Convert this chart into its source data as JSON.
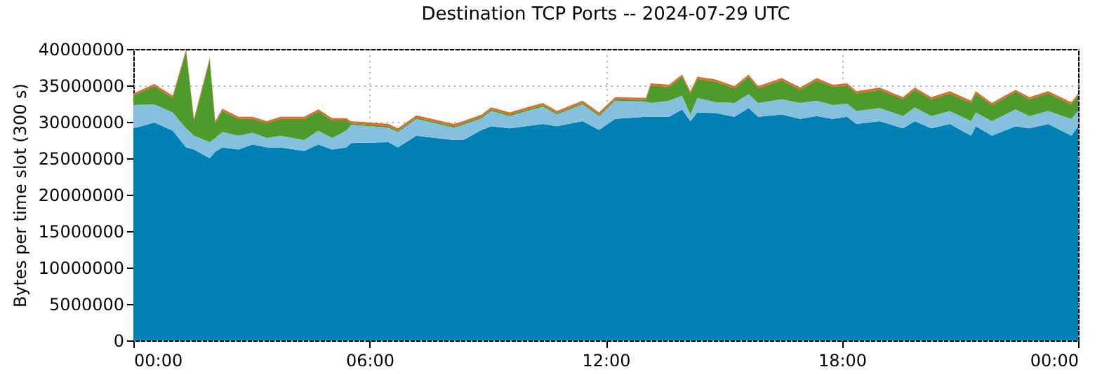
{
  "chart_data": {
    "type": "area",
    "stacked": true,
    "title": "Destination TCP Ports -- 2024-07-29 UTC",
    "ylabel": "Bytes per time slot (300 s)",
    "x": [
      0,
      0.53,
      1,
      1.34,
      1.54,
      1.94,
      2.08,
      2.26,
      2.67,
      3.03,
      3.39,
      3.74,
      4.34,
      4.7,
      5.05,
      5.41,
      5.53,
      6.48,
      6.72,
      7.19,
      8.14,
      8.38,
      8.85,
      9.09,
      9.56,
      10.4,
      10.76,
      11.41,
      11.83,
      12.24,
      13.02,
      13.14,
      13.61,
      13.94,
      14.15,
      14.33,
      14.8,
      15.27,
      15.63,
      15.87,
      16.47,
      16.94,
      17.36,
      17.77,
      18.13,
      18.37,
      18.96,
      19.55,
      19.85,
      20.27,
      20.74,
      21.28,
      21.4,
      21.81,
      22.41,
      22.76,
      23.24,
      23.83,
      24
    ],
    "series": [
      {
        "color": "#0081b5",
        "values": [
          29100000,
          29900000,
          28800000,
          26500000,
          26200000,
          25000000,
          25900000,
          26500000,
          26200000,
          26900000,
          26500000,
          26500000,
          26000000,
          26900000,
          26200000,
          26500000,
          27100000,
          27200000,
          26500000,
          28100000,
          27500000,
          27500000,
          28900000,
          29400000,
          29100000,
          29700000,
          29400000,
          30100000,
          28900000,
          30400000,
          30700000,
          30700000,
          30700000,
          31700000,
          30100000,
          31300000,
          31200000,
          30700000,
          31900000,
          30700000,
          31000000,
          30400000,
          30800000,
          30400000,
          30700000,
          29700000,
          30100000,
          29100000,
          30100000,
          29100000,
          29700000,
          28100000,
          29400000,
          28100000,
          29400000,
          29100000,
          29700000,
          28100000,
          29400000
        ]
      },
      {
        "color": "#86c0df",
        "values": [
          3200000,
          2500000,
          2500000,
          2600000,
          1900000,
          2200000,
          1900000,
          2100000,
          1900000,
          1600000,
          1300000,
          1600000,
          1500000,
          1900000,
          1600000,
          2300000,
          2500000,
          2000000,
          2100000,
          2300000,
          1700000,
          2100000,
          1600000,
          2100000,
          1700000,
          2400000,
          1600000,
          2300000,
          1900000,
          2500000,
          2100000,
          1900000,
          2200000,
          1900000,
          900000,
          2000000,
          1500000,
          1900000,
          1900000,
          1900000,
          2100000,
          2200000,
          2100000,
          1900000,
          1800000,
          1800000,
          1800000,
          1700000,
          1900000,
          1700000,
          1800000,
          2000000,
          1900000,
          2000000,
          2300000,
          1700000,
          1800000,
          2300000,
          2100000
        ]
      },
      {
        "color": "#4d9b2b",
        "values": [
          1300000,
          2500000,
          2000000,
          10600000,
          2000000,
          11300000,
          2000000,
          2900000,
          2300000,
          1900000,
          2000000,
          2300000,
          2900000,
          2600000,
          2400000,
          1400000,
          200000,
          200000,
          200000,
          200000,
          200000,
          200000,
          200000,
          200000,
          200000,
          200000,
          200000,
          200000,
          200000,
          200000,
          200000,
          2400000,
          1900000,
          2600000,
          2900000,
          2600000,
          2800000,
          2000000,
          2400000,
          2000000,
          2600000,
          1800000,
          2800000,
          2500000,
          2500000,
          2400000,
          2500000,
          2300000,
          2400000,
          2300000,
          2400000,
          2500000,
          2600000,
          2200000,
          2400000,
          2300000,
          2400000,
          2000000,
          2100000
        ]
      },
      {
        "color": "#e0682a",
        "values": [
          300000,
          300000,
          300000,
          300000,
          300000,
          300000,
          300000,
          300000,
          300000,
          300000,
          300000,
          300000,
          300000,
          300000,
          300000,
          300000,
          300000,
          300000,
          300000,
          300000,
          300000,
          300000,
          300000,
          300000,
          300000,
          300000,
          300000,
          300000,
          300000,
          300000,
          300000,
          300000,
          300000,
          300000,
          300000,
          300000,
          300000,
          300000,
          300000,
          300000,
          300000,
          300000,
          300000,
          300000,
          300000,
          300000,
          300000,
          300000,
          300000,
          300000,
          300000,
          300000,
          300000,
          300000,
          300000,
          300000,
          300000,
          300000,
          300000
        ]
      }
    ],
    "xlim": [
      0,
      24
    ],
    "xticks": [
      {
        "value": 0,
        "label": "00:00"
      },
      {
        "value": 6,
        "label": "06:00"
      },
      {
        "value": 12,
        "label": "12:00"
      },
      {
        "value": 18,
        "label": "18:00"
      },
      {
        "value": 24,
        "label": "00:00"
      }
    ],
    "ylim": [
      0,
      40000000
    ],
    "yticks": [
      0,
      5000000,
      10000000,
      15000000,
      20000000,
      25000000,
      30000000,
      35000000,
      40000000
    ],
    "grid": true
  }
}
